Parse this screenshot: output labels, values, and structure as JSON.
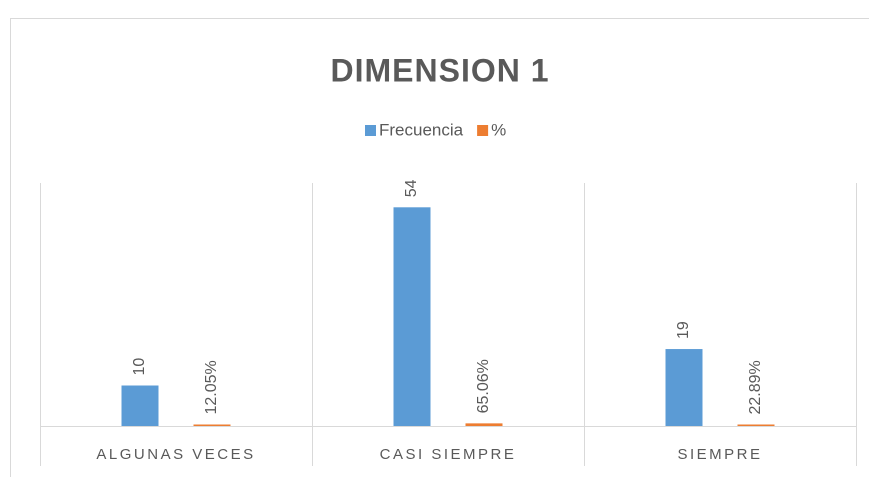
{
  "chart_data": {
    "type": "bar",
    "title": "DIMENSION 1",
    "categories": [
      "ALGUNAS VECES",
      "CASI SIEMPRE",
      "SIEMPRE"
    ],
    "series": [
      {
        "name": "Frecuencia",
        "color": "#5b9bd5",
        "values": [
          10,
          54,
          19
        ]
      },
      {
        "name": "%",
        "color": "#ed7d31",
        "values": [
          0.1205,
          0.6506,
          0.2289
        ],
        "value_labels": [
          "12.05%",
          "65.06%",
          "22.89%"
        ]
      }
    ],
    "ylim": [
      0,
      60
    ],
    "legend": "top"
  }
}
